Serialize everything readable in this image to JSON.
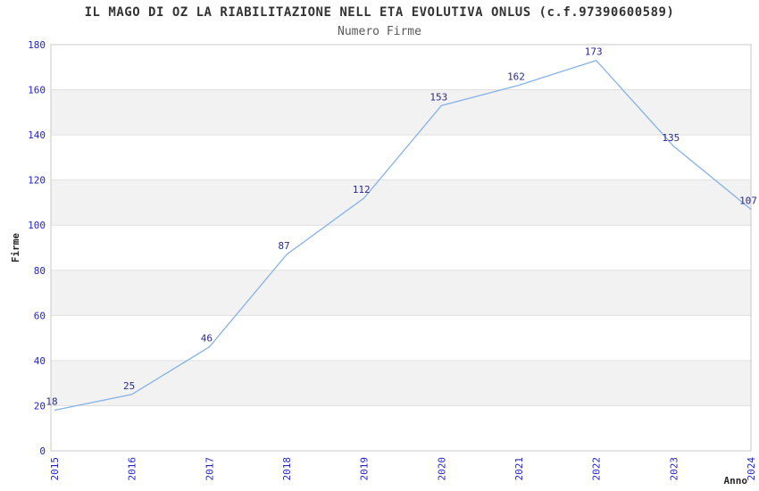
{
  "chart_data": {
    "type": "line",
    "title": "IL MAGO DI OZ LA RIABILITAZIONE NELL ETA EVOLUTIVA ONLUS (c.f.97390600589)",
    "subtitle": "Numero Firme",
    "xlabel": "Anno",
    "ylabel": "Firme",
    "categories": [
      "2015",
      "2016",
      "2017",
      "2018",
      "2019",
      "2020",
      "2021",
      "2022",
      "2023",
      "2024"
    ],
    "values": [
      18,
      25,
      46,
      87,
      112,
      153,
      162,
      173,
      135,
      107
    ],
    "ylim": [
      0,
      180
    ],
    "ytick_step": 20,
    "legend": "none",
    "grid": "horizontal-bands",
    "colors": {
      "line": "#85b2e8",
      "point_label": "#2a2a8c",
      "tick_label": "#2323cc",
      "title": "#333333",
      "subtitle": "#595959",
      "axis_title": "#262626",
      "band_light": "#ffffff",
      "band_dark": "#f2f2f2",
      "grid_line": "#e0e0e0",
      "plot_border": "#c9c9c9",
      "background": "#ffffff"
    }
  }
}
